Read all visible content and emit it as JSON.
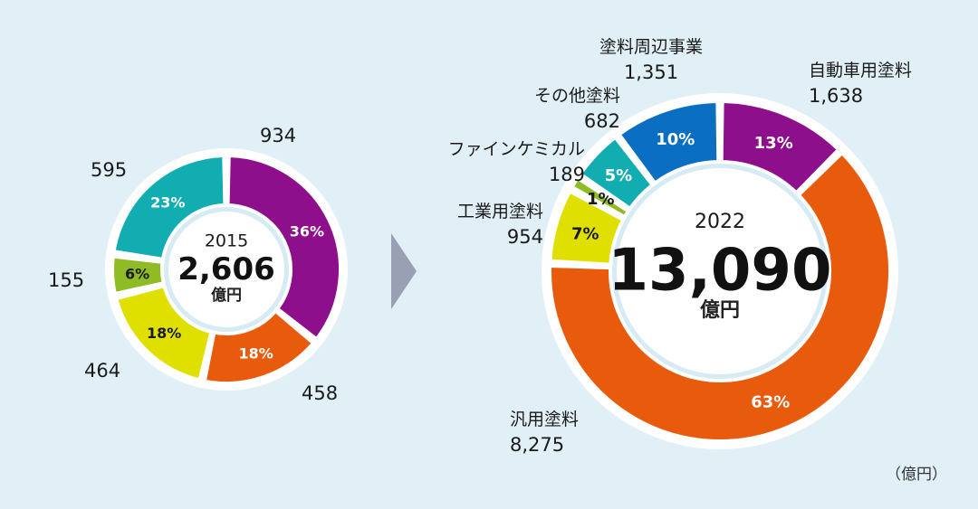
{
  "chart_data": [
    {
      "type": "pie",
      "variant": "donut",
      "title": "2015",
      "center_year": "2015",
      "center_total": "2,606",
      "center_unit": "億円",
      "categories": [
        "自動車用塗料",
        "汎用塗料",
        "工業用塗料",
        "ファインケミカル",
        "その他塗料"
      ],
      "values": [
        934,
        458,
        464,
        155,
        595
      ],
      "value_labels": [
        "934",
        "458",
        "464",
        "155",
        "595"
      ],
      "percent_labels": [
        "36%",
        "18%",
        "18%",
        "6%",
        "23%"
      ],
      "colors": [
        "#8e0f8c",
        "#e85a0c",
        "#dfe000",
        "#8fbb25",
        "#12adb0"
      ]
    },
    {
      "type": "pie",
      "variant": "donut",
      "title": "2022",
      "center_year": "2022",
      "center_total": "13,090",
      "center_unit": "億円",
      "categories": [
        "自動車用塗料",
        "汎用塗料",
        "工業用塗料",
        "ファインケミカル",
        "その他塗料",
        "塗料周辺事業"
      ],
      "values": [
        1638,
        8275,
        954,
        189,
        682,
        1351
      ],
      "value_labels": [
        "1,638",
        "8,275",
        "954",
        "189",
        "682",
        "1,351"
      ],
      "percent_labels": [
        "13%",
        "63%",
        "7%",
        "1%",
        "5%",
        "10%"
      ],
      "colors": [
        "#8e0f8c",
        "#e85a0c",
        "#dfe000",
        "#8fbb25",
        "#12adb0",
        "#0a6fc2"
      ]
    }
  ],
  "labels2015": [
    "934",
    "458",
    "464",
    "155",
    "595"
  ],
  "labels2022": {
    "auto": {
      "name": "自動車用塗料",
      "value": "1,638"
    },
    "general": {
      "name": "汎用塗料",
      "value": "8,275"
    },
    "industrial": {
      "name": "工業用塗料",
      "value": "954"
    },
    "fine": {
      "name": "ファインケミカル",
      "value": "189"
    },
    "other": {
      "name": "その他塗料",
      "value": "682"
    },
    "peripheral": {
      "name": "塗料周辺事業",
      "value": "1,351"
    }
  },
  "unit_note": "（億円）",
  "arrow_color": "#9aa0b4"
}
